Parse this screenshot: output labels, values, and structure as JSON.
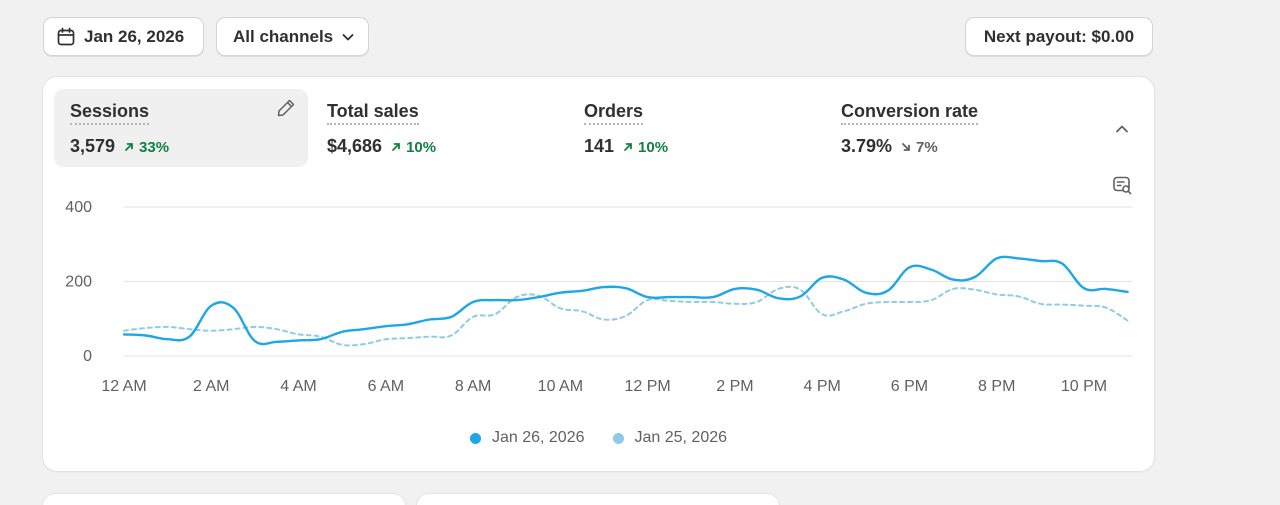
{
  "filters": {
    "date_label": "Jan 26, 2026",
    "channel_label": "All channels",
    "payout_label": "Next payout: $0.00"
  },
  "metrics": [
    {
      "label": "Sessions",
      "value": "3,579",
      "change": "33%",
      "direction": "up"
    },
    {
      "label": "Total sales",
      "value": "$4,686",
      "change": "10%",
      "direction": "up"
    },
    {
      "label": "Orders",
      "value": "141",
      "change": "10%",
      "direction": "up"
    },
    {
      "label": "Conversion rate",
      "value": "3.79%",
      "change": "7%",
      "direction": "down"
    }
  ],
  "colors": {
    "current": "#1ea7e4",
    "previous": "#8fcbe6",
    "up": "#108043",
    "grid": "#e3e3e3"
  },
  "chart_data": {
    "type": "line",
    "title": "Sessions",
    "xlabel": "",
    "ylabel": "",
    "ylim": [
      0,
      400
    ],
    "yticks": [
      0,
      200,
      400
    ],
    "x_tick_labels": [
      "12 AM",
      "2 AM",
      "4 AM",
      "6 AM",
      "8 AM",
      "10 AM",
      "12 PM",
      "2 PM",
      "4 PM",
      "6 PM",
      "8 PM",
      "10 PM"
    ],
    "x_range": [
      0,
      23.1
    ],
    "grid": true,
    "legend_placement": "bottom-center",
    "series": [
      {
        "name": "Jan 26, 2026",
        "style": "solid",
        "x": [
          0,
          0.5,
          1.0,
          1.5,
          2.0,
          2.5,
          3.0,
          3.5,
          4.0,
          4.5,
          5.0,
          5.5,
          6.0,
          6.5,
          7.0,
          7.5,
          8.0,
          8.5,
          9.0,
          9.5,
          10.0,
          10.5,
          11.0,
          11.5,
          12.0,
          12.5,
          13.0,
          13.5,
          14.0,
          14.5,
          15.0,
          15.5,
          16.0,
          16.5,
          17.0,
          17.5,
          18.0,
          18.5,
          19.0,
          19.5,
          20.0,
          20.5,
          21.0,
          21.5,
          22.0,
          22.5,
          23.0
        ],
        "values": [
          58,
          55,
          45,
          52,
          135,
          130,
          40,
          38,
          42,
          45,
          65,
          72,
          80,
          85,
          98,
          105,
          145,
          150,
          150,
          158,
          170,
          175,
          185,
          182,
          158,
          158,
          158,
          158,
          180,
          178,
          155,
          160,
          210,
          205,
          170,
          175,
          238,
          232,
          205,
          212,
          262,
          262,
          255,
          248,
          182,
          180,
          172
        ]
      },
      {
        "name": "Jan 25, 2026",
        "style": "dashed",
        "x": [
          0,
          0.5,
          1.0,
          1.5,
          2.0,
          2.5,
          3.0,
          3.5,
          4.0,
          4.5,
          5.0,
          5.5,
          6.0,
          6.5,
          7.0,
          7.5,
          8.0,
          8.5,
          9.0,
          9.5,
          10.0,
          10.5,
          11.0,
          11.5,
          12.0,
          12.5,
          13.0,
          13.5,
          14.0,
          14.5,
          15.0,
          15.5,
          16.0,
          16.5,
          17.0,
          17.5,
          18.0,
          18.5,
          19.0,
          19.5,
          20.0,
          20.5,
          21.0,
          21.5,
          22.0,
          22.5,
          23.0
        ],
        "values": [
          68,
          75,
          78,
          72,
          68,
          72,
          78,
          72,
          58,
          52,
          30,
          32,
          45,
          48,
          52,
          55,
          105,
          112,
          158,
          162,
          128,
          120,
          98,
          108,
          150,
          148,
          145,
          145,
          140,
          145,
          180,
          178,
          112,
          120,
          140,
          145,
          145,
          150,
          180,
          178,
          165,
          160,
          140,
          138,
          135,
          130,
          95
        ]
      }
    ]
  }
}
